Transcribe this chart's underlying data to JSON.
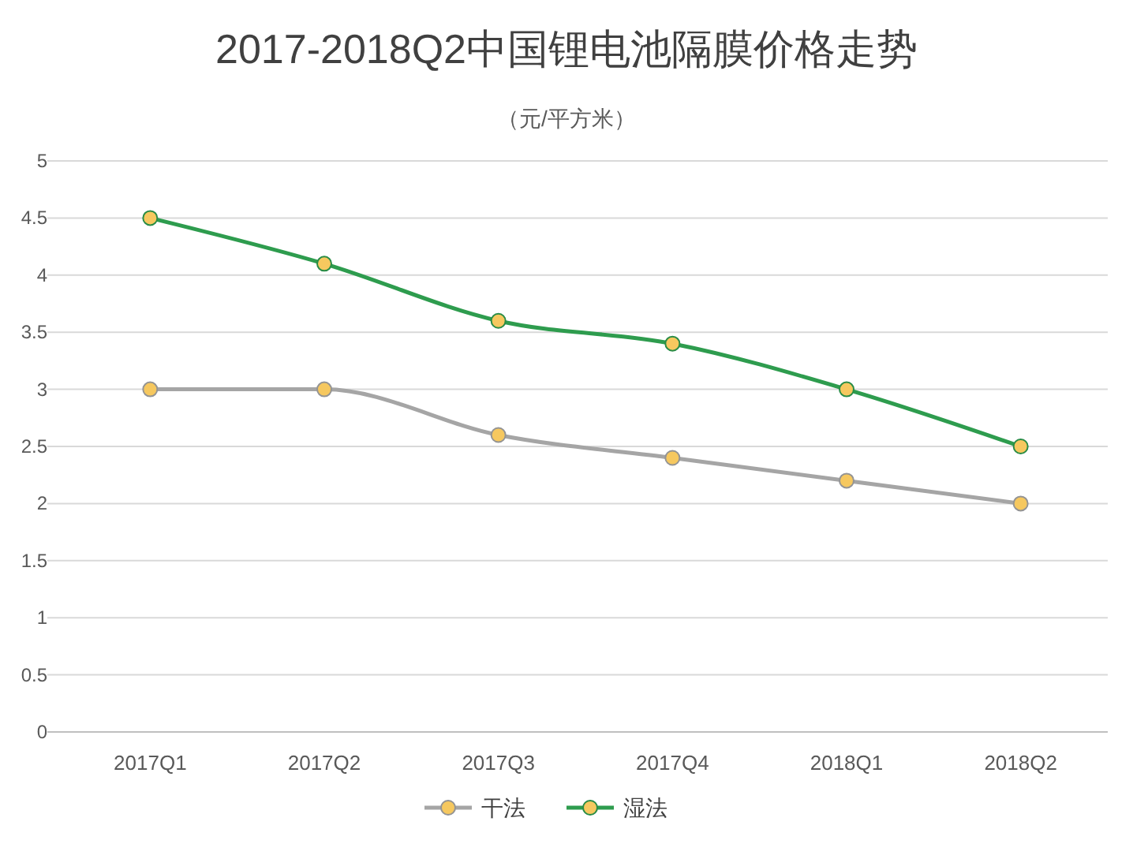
{
  "chart_data": {
    "type": "line",
    "title": "2017-2018Q2中国锂电池隔膜价格走势",
    "subtitle": "（元/平方米）",
    "categories": [
      "2017Q1",
      "2017Q2",
      "2017Q3",
      "2017Q4",
      "2018Q1",
      "2018Q2"
    ],
    "series": [
      {
        "name": "干法",
        "color": "#a5a5a5",
        "values": [
          3,
          3,
          2.6,
          2.4,
          2.2,
          2.0
        ]
      },
      {
        "name": "湿法",
        "color": "#2e9c4e",
        "values": [
          4.5,
          4.1,
          3.6,
          3.4,
          3.0,
          2.5
        ]
      }
    ],
    "ylim": [
      0,
      5
    ],
    "yticks": [
      0,
      0.5,
      1,
      1.5,
      2,
      2.5,
      3,
      3.5,
      4,
      4.5,
      5
    ],
    "grid": "y",
    "legend": "bottom",
    "marker": "circle",
    "line_style": "solid"
  }
}
